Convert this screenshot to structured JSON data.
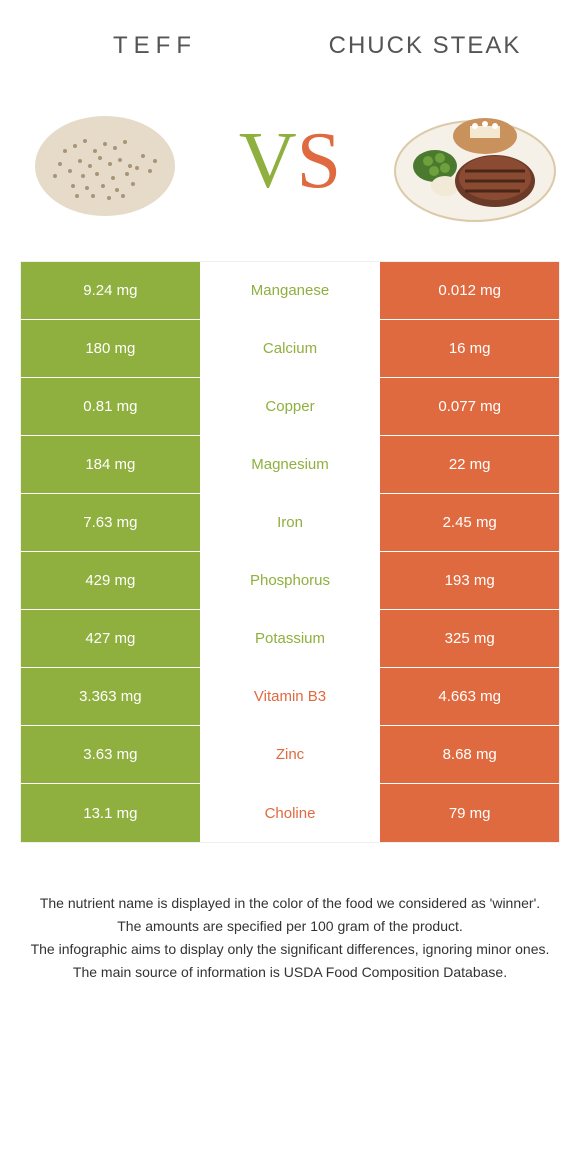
{
  "titles": {
    "left": "TEFF",
    "right": "CHUCK STEAK"
  },
  "vs": {
    "v": "V",
    "s": "S"
  },
  "colors": {
    "green": "#8fb03e",
    "orange": "#e06a3f",
    "pale": "#fdece5",
    "midtext_green": "#8fb03e",
    "midtext_orange": "#e06a3f"
  },
  "rows": [
    {
      "left": "9.24 mg",
      "nutrient": "Manganese",
      "right": "0.012 mg",
      "winner": "left"
    },
    {
      "left": "180 mg",
      "nutrient": "Calcium",
      "right": "16 mg",
      "winner": "left"
    },
    {
      "left": "0.81 mg",
      "nutrient": "Copper",
      "right": "0.077 mg",
      "winner": "left"
    },
    {
      "left": "184 mg",
      "nutrient": "Magnesium",
      "right": "22 mg",
      "winner": "left"
    },
    {
      "left": "7.63 mg",
      "nutrient": "Iron",
      "right": "2.45 mg",
      "winner": "left"
    },
    {
      "left": "429 mg",
      "nutrient": "Phosphorus",
      "right": "193 mg",
      "winner": "left"
    },
    {
      "left": "427 mg",
      "nutrient": "Potassium",
      "right": "325 mg",
      "winner": "left"
    },
    {
      "left": "3.363 mg",
      "nutrient": "Vitamin B3",
      "right": "4.663 mg",
      "winner": "right"
    },
    {
      "left": "3.63 mg",
      "nutrient": "Zinc",
      "right": "8.68 mg",
      "winner": "right"
    },
    {
      "left": "13.1 mg",
      "nutrient": "Choline",
      "right": "79 mg",
      "winner": "right"
    }
  ],
  "footer": [
    "The nutrient name is displayed in the color of the food we considered as 'winner'.",
    "The amounts are specified per 100 gram of the product.",
    "The infographic aims to display only the significant differences, ignoring minor ones.",
    "The main source of information is USDA Food Composition Database."
  ]
}
